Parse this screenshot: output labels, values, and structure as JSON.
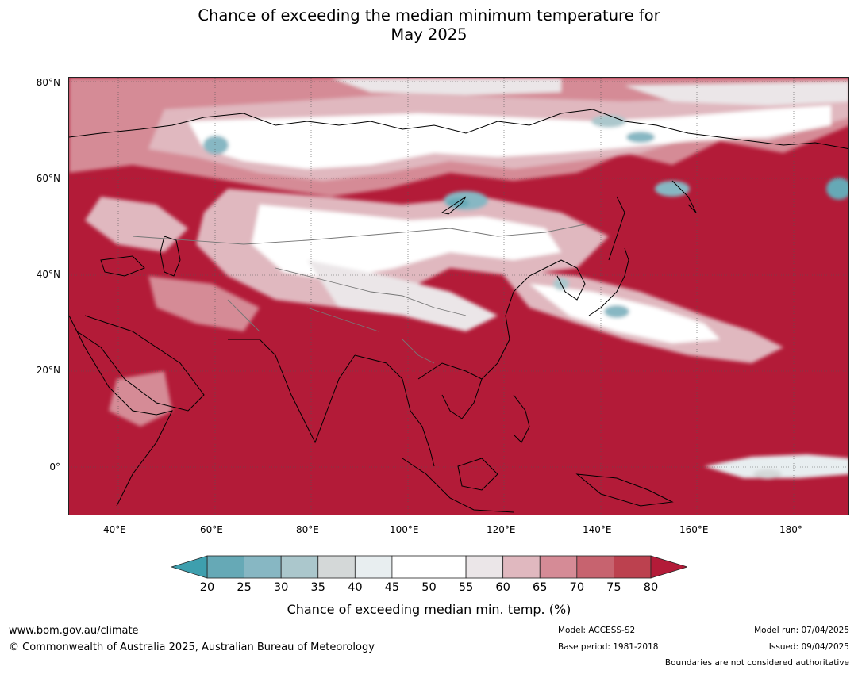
{
  "title": {
    "line1": "Chance of exceeding the median minimum temperature for",
    "line2": "May 2025"
  },
  "map": {
    "lat_labels": [
      "80°N",
      "60°N",
      "40°N",
      "20°N",
      "0°"
    ],
    "lon_labels": [
      "40°E",
      "60°E",
      "80°E",
      "100°E",
      "120°E",
      "140°E",
      "160°E",
      "180°"
    ],
    "background_color": "#b31b38"
  },
  "colorbar": {
    "ticks": [
      "20",
      "25",
      "30",
      "35",
      "40",
      "45",
      "50",
      "55",
      "60",
      "65",
      "70",
      "75",
      "80"
    ],
    "colors": [
      "#66a9b6",
      "#87b7c3",
      "#abc7cc",
      "#d4d8d8",
      "#e8eef0",
      "#ffffff",
      "#ffffff",
      "#ebe6e8",
      "#e0b8bf",
      "#d58b96",
      "#c7636f",
      "#bc414f"
    ],
    "low_extend_color": "#3e9fae",
    "high_extend_color": "#b31b38",
    "title": "Chance of exceeding median min. temp. (%)"
  },
  "footer": {
    "website": "www.bom.gov.au/climate",
    "copyright": "© Commonwealth of Australia 2025, Australian Bureau of Meteorology",
    "model": "Model: ACCESS-S2",
    "base_period": "Base period: 1981-2018",
    "model_run": "Model run: 07/04/2025",
    "issued": "Issued: 09/04/2025",
    "disclaimer": "Boundaries are not considered authoritative"
  }
}
